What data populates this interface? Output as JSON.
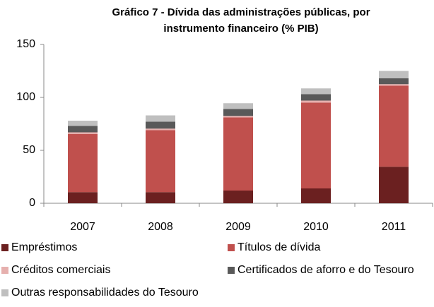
{
  "chart_data": {
    "type": "stacked_bar",
    "title": "Gráfico 7 - Dívida das administrações públicas, por instrumento financeiro (% PIB)",
    "categories": [
      "2007",
      "2008",
      "2009",
      "2010",
      "2011"
    ],
    "series": [
      {
        "name": "Empréstimos",
        "color": "#6b2020",
        "values": [
          10.5,
          10.5,
          12,
          14,
          34.5
        ]
      },
      {
        "name": "Títulos de dívida",
        "color": "#c0504d",
        "values": [
          55,
          58.5,
          69,
          81,
          76.5
        ]
      },
      {
        "name": "Créditos comerciais",
        "color": "#e6b0ae",
        "values": [
          1.5,
          1.5,
          1.5,
          2,
          1.5
        ]
      },
      {
        "name": "Certificados de aforro e do Tesouro",
        "color": "#595959",
        "values": [
          6,
          6.5,
          6.5,
          6,
          5.5
        ]
      },
      {
        "name": "Outras responsabilidades do Tesouro",
        "color": "#bfbfbf",
        "values": [
          5,
          6,
          5.5,
          5.5,
          7
        ]
      }
    ],
    "ylim": [
      0,
      150
    ],
    "yticks": [
      0,
      50,
      100,
      150
    ],
    "grid": false
  }
}
